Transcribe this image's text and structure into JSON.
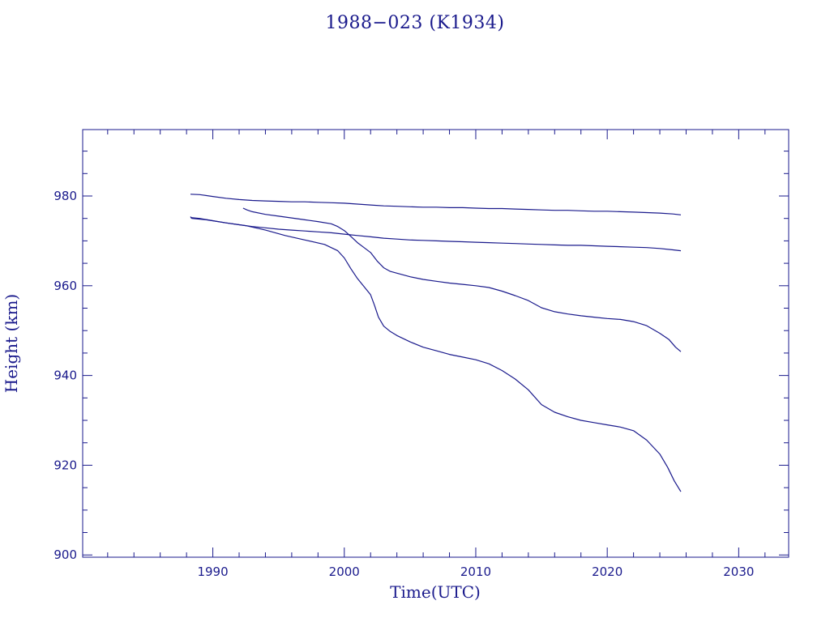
{
  "chart_data": {
    "type": "line",
    "title": "1988−023 (K1934)",
    "xlabel": "Time(UTC)",
    "ylabel": "Height (km)",
    "xlim": [
      1980.1,
      2033.8
    ],
    "ylim": [
      899.5,
      994.8
    ],
    "xticks": [
      1990,
      2000,
      2010,
      2020,
      2030
    ],
    "yticks": [
      900,
      920,
      940,
      960,
      980
    ],
    "grid": false,
    "legend": "none",
    "color": "#1a1a8c",
    "series": [
      {
        "x": [
          1988.3,
          1989.0,
          1990.0,
          1991.0,
          1992.0,
          1993.0,
          1994.0,
          1995.0,
          1996.0,
          1997.0,
          1998.0,
          1999.0,
          2000.0,
          2001.0,
          2002.0,
          2003.0,
          2004.0,
          2005.0,
          2006.0,
          2007.0,
          2008.0,
          2009.0,
          2010.0,
          2011.0,
          2012.0,
          2013.0,
          2014.0,
          2015.0,
          2016.0,
          2017.0,
          2018.0,
          2019.0,
          2020.0,
          2021.0,
          2022.0,
          2023.0,
          2024.0,
          2025.0,
          2025.6
        ],
        "y": [
          980.4,
          980.3,
          979.9,
          979.5,
          979.2,
          979.0,
          978.9,
          978.8,
          978.7,
          978.7,
          978.6,
          978.5,
          978.4,
          978.2,
          978.0,
          977.8,
          977.7,
          977.6,
          977.5,
          977.5,
          977.4,
          977.4,
          977.3,
          977.2,
          977.2,
          977.1,
          977.0,
          976.9,
          976.8,
          976.8,
          976.7,
          976.6,
          976.6,
          976.5,
          976.4,
          976.3,
          976.2,
          976.0,
          975.8
        ]
      },
      {
        "x": [
          1988.3,
          1989.0,
          1990.0,
          1991.0,
          1992.0,
          1993.0,
          1994.0,
          1995.0,
          1996.0,
          1997.0,
          1998.0,
          1999.0,
          2000.0,
          2001.0,
          2002.0,
          2003.0,
          2004.0,
          2005.0,
          2006.0,
          2007.0,
          2008.0,
          2009.0,
          2010.0,
          2011.0,
          2012.0,
          2013.0,
          2014.0,
          2015.0,
          2016.0,
          2017.0,
          2018.0,
          2019.0,
          2020.0,
          2021.0,
          2022.0,
          2023.0,
          2024.0,
          2025.0,
          2025.6
        ],
        "y": [
          975.2,
          975.0,
          974.5,
          974.0,
          973.6,
          973.2,
          972.9,
          972.6,
          972.4,
          972.2,
          972.0,
          971.8,
          971.5,
          971.2,
          970.9,
          970.6,
          970.4,
          970.2,
          970.1,
          970.0,
          969.9,
          969.8,
          969.7,
          969.6,
          969.5,
          969.4,
          969.3,
          969.2,
          969.1,
          969.0,
          969.0,
          968.9,
          968.8,
          968.7,
          968.6,
          968.5,
          968.3,
          968.0,
          967.8
        ]
      },
      {
        "x": [
          1992.3,
          1992.6,
          1993.0,
          1994.0,
          1995.0,
          1996.0,
          1997.0,
          1998.0,
          1999.0,
          1999.5,
          2000.0,
          2000.5,
          2001.0,
          2001.5,
          2002.0,
          2002.5,
          2003.0,
          2003.5,
          2004.0,
          2005.0,
          2006.0,
          2007.0,
          2008.0,
          2009.0,
          2010.0,
          2011.0,
          2012.0,
          2013.0,
          2014.0,
          2015.0,
          2016.0,
          2017.0,
          2018.0,
          2019.0,
          2020.0,
          2021.0,
          2022.0,
          2023.0,
          2024.0,
          2024.7,
          2025.2,
          2025.6
        ],
        "y": [
          977.3,
          976.9,
          976.5,
          975.9,
          975.5,
          975.1,
          974.7,
          974.3,
          973.8,
          973.2,
          972.3,
          971.0,
          969.6,
          968.5,
          967.4,
          965.5,
          964.0,
          963.2,
          962.8,
          962.0,
          961.4,
          961.0,
          960.6,
          960.3,
          960.0,
          959.6,
          958.8,
          957.8,
          956.7,
          955.1,
          954.2,
          953.7,
          953.3,
          953.0,
          952.7,
          952.5,
          952.0,
          951.1,
          949.4,
          948.0,
          946.3,
          945.3
        ]
      },
      {
        "x": [
          1988.3,
          1988.4,
          1989.5,
          1991.0,
          1992.5,
          1994.0,
          1995.5,
          1997.0,
          1998.5,
          1999.5,
          2000.0,
          2000.5,
          2001.0,
          2001.5,
          2002.0,
          2002.3,
          2002.6,
          2003.0,
          2003.5,
          2004.0,
          2005.0,
          2006.0,
          2007.0,
          2008.0,
          2009.0,
          2010.0,
          2011.0,
          2012.0,
          2013.0,
          2014.0,
          2015.0,
          2016.0,
          2017.0,
          2018.0,
          2019.0,
          2020.0,
          2021.0,
          2022.0,
          2023.0,
          2024.0,
          2024.6,
          2025.1,
          2025.6
        ],
        "y": [
          975.4,
          975.0,
          974.7,
          974.0,
          973.4,
          972.4,
          971.2,
          970.2,
          969.2,
          967.8,
          966.2,
          963.8,
          961.6,
          959.8,
          958.0,
          955.6,
          953.0,
          951.0,
          949.8,
          948.9,
          947.5,
          946.3,
          945.5,
          944.7,
          944.1,
          943.5,
          942.6,
          941.1,
          939.2,
          936.8,
          933.5,
          931.8,
          930.8,
          930.0,
          929.5,
          929.0,
          928.5,
          927.7,
          925.6,
          922.5,
          919.5,
          916.5,
          914.1
        ]
      }
    ]
  }
}
